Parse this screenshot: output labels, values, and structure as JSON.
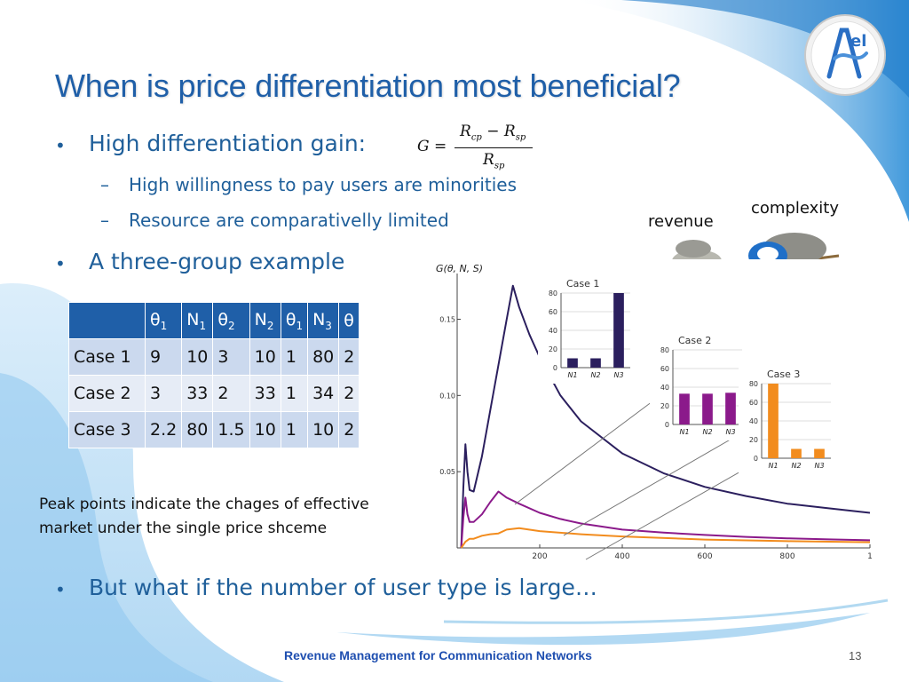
{
  "slide": {
    "title": "When is price differentiation most beneficial?",
    "page_number": "13",
    "footer": "Revenue Management for Communication Networks"
  },
  "bullets": {
    "b1": "High differentiation gain:",
    "b1_sub1": "High willingness to pay users are minorities",
    "b1_sub2": "Resource are comparativelly limited",
    "b2": "A three-group example",
    "b3": "But what if the number of user type is large…",
    "dash": "–",
    "bullet": "•"
  },
  "formula": {
    "lhs": "G =",
    "num": "R",
    "num_sub": "cp",
    "minus": " − R",
    "num_sub2": "sp",
    "den": "R",
    "den_sub": "sp"
  },
  "table": {
    "headers": [
      "",
      "θ",
      "N",
      "θ",
      "N",
      "θ",
      "N",
      "θ"
    ],
    "header_subs": [
      "",
      "1",
      "1",
      "2",
      "2",
      "1",
      "3",
      ""
    ],
    "rows": [
      [
        "Case 1",
        "9",
        "10",
        "3",
        "10",
        "1",
        "80",
        "2"
      ],
      [
        "Case 2",
        "3",
        "33",
        "2",
        "33",
        "1",
        "34",
        "2"
      ],
      [
        "Case 3",
        "2.2",
        "80",
        "1.5",
        "10",
        "1",
        "10",
        "2"
      ]
    ]
  },
  "note": {
    "line1": "Peak points indicate the chages of  effective",
    "line2": "market under the single price shceme"
  },
  "image_labels": {
    "revenue": "revenue",
    "complexity": "complexity"
  },
  "chart_data": [
    {
      "type": "line",
      "ylabel": "G(θ, N, S)",
      "x_ticks": [
        "200",
        "400",
        "600",
        "800",
        "1"
      ],
      "y_ticks": [
        "0.05",
        "0.10",
        "0.15"
      ],
      "xlim": [
        0,
        1000
      ],
      "ylim": [
        0,
        0.18
      ],
      "colors": {
        "case1": "#2b1f5e",
        "case2": "#8b1a8b",
        "case3": "#f28c1e"
      },
      "series": [
        {
          "x": [
            10,
            15,
            20,
            25,
            30,
            40,
            60,
            80,
            100,
            120,
            135,
            150,
            175,
            200,
            250,
            300,
            400,
            500,
            600,
            700,
            800,
            900,
            1000
          ],
          "values": [
            0.0,
            0.04,
            0.068,
            0.05,
            0.038,
            0.037,
            0.06,
            0.09,
            0.12,
            0.15,
            0.172,
            0.158,
            0.14,
            0.125,
            0.1,
            0.083,
            0.062,
            0.049,
            0.04,
            0.034,
            0.029,
            0.026,
            0.023
          ]
        },
        {
          "x": [
            10,
            15,
            20,
            25,
            30,
            40,
            60,
            80,
            100,
            120,
            150,
            200,
            250,
            300,
            400,
            500,
            600,
            700,
            800,
            900,
            1000
          ],
          "values": [
            0.0,
            0.02,
            0.033,
            0.022,
            0.017,
            0.017,
            0.022,
            0.03,
            0.037,
            0.033,
            0.029,
            0.023,
            0.019,
            0.016,
            0.012,
            0.01,
            0.0085,
            0.0072,
            0.0063,
            0.0056,
            0.005
          ]
        },
        {
          "x": [
            10,
            20,
            30,
            40,
            60,
            80,
            100,
            120,
            150,
            200,
            300,
            400,
            600,
            800,
            1000
          ],
          "values": [
            0.0,
            0.004,
            0.006,
            0.006,
            0.008,
            0.009,
            0.0095,
            0.012,
            0.013,
            0.011,
            0.009,
            0.0075,
            0.0055,
            0.0044,
            0.0037
          ]
        }
      ]
    },
    {
      "type": "bar",
      "title": "Case 1",
      "categories": [
        "N1",
        "N2",
        "N3"
      ],
      "values": [
        10,
        10,
        80
      ],
      "y_ticks": [
        0,
        20,
        40,
        60,
        80
      ],
      "ylim": [
        0,
        80
      ],
      "color": "#2b1f5e"
    },
    {
      "type": "bar",
      "title": "Case 2",
      "categories": [
        "N1",
        "N2",
        "N3"
      ],
      "values": [
        33,
        33,
        34
      ],
      "y_ticks": [
        0,
        20,
        40,
        60,
        80
      ],
      "ylim": [
        0,
        80
      ],
      "color": "#8b1a8b"
    },
    {
      "type": "bar",
      "title": "Case 3",
      "categories": [
        "N1",
        "N2",
        "N3"
      ],
      "values": [
        80,
        10,
        10
      ],
      "y_ticks": [
        0,
        20,
        40,
        60,
        80
      ],
      "ylim": [
        0,
        80
      ],
      "color": "#f28c1e"
    }
  ]
}
